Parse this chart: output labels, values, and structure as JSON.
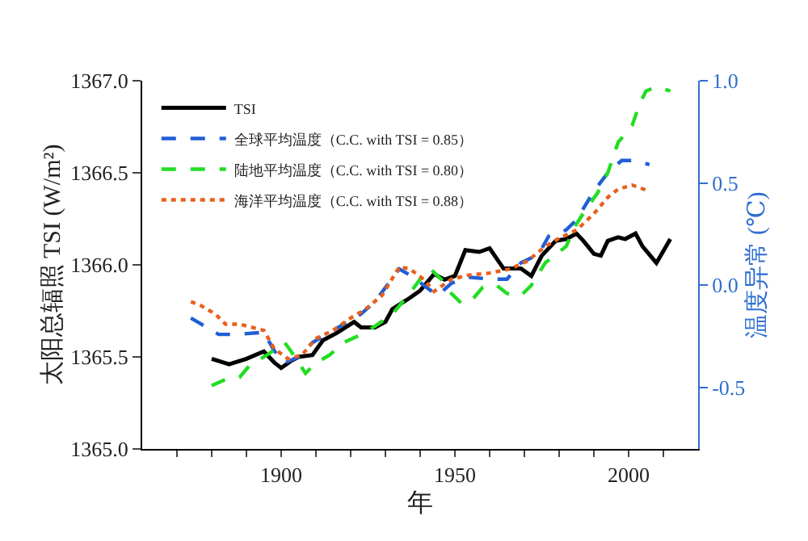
{
  "chart_data": {
    "type": "line",
    "xlabel": "年",
    "ylabel": "太阳总辐照 TSI (W/m²)",
    "y2label": "温度异常 (℃)",
    "xlim": [
      1860,
      2020
    ],
    "xticks": [
      {
        "value": 1870,
        "label": null
      },
      {
        "value": 1880,
        "label": null
      },
      {
        "value": 1890,
        "label": null
      },
      1900,
      {
        "value": 1910,
        "label": null
      },
      {
        "value": 1920,
        "label": null
      },
      {
        "value": 1930,
        "label": null
      },
      {
        "value": 1940,
        "label": null
      },
      1950,
      {
        "value": 1960,
        "label": null
      },
      {
        "value": 1970,
        "label": null
      },
      {
        "value": 1980,
        "label": null
      },
      {
        "value": 1990,
        "label": null
      },
      2000,
      {
        "value": 2010,
        "label": null
      }
    ],
    "ylim": [
      1365.0,
      1367.0
    ],
    "yticks": [
      {
        "value": 1365.0,
        "label": "1365.0"
      },
      {
        "value": 1365.5,
        "label": "1365.5"
      },
      {
        "value": 1366.0,
        "label": "1366.0"
      },
      {
        "value": 1366.5,
        "label": "1366.5"
      },
      {
        "value": 1367.0,
        "label": "1367.0"
      }
    ],
    "y2lim": [
      -0.8,
      1.0
    ],
    "y2ticks": [
      {
        "value": -0.5,
        "label": "-0.5"
      },
      {
        "value": 0.0,
        "label": "0.0"
      },
      {
        "value": 0.5,
        "label": "0.5"
      },
      {
        "value": 1.0,
        "label": "1.0"
      }
    ],
    "legend": "top left",
    "marker": "none",
    "series": [
      {
        "name": "TSI",
        "color": "#000000",
        "line_style": "solid",
        "x": [
          1880,
          1885,
          1890,
          1895,
          1898,
          1900,
          1903,
          1905,
          1909,
          1912,
          1916,
          1921,
          1923,
          1927,
          1930,
          1932,
          1937,
          1940,
          1944,
          1947,
          1950,
          1953,
          1957,
          1960,
          1964,
          1966,
          1969,
          1972,
          1975,
          1979,
          1982,
          1985,
          1987,
          1990,
          1992,
          1994,
          1997,
          1999,
          2002,
          2004,
          2008,
          2012
        ],
        "values": [
          1365.49,
          1365.46,
          1365.49,
          1365.53,
          1365.47,
          1365.44,
          1365.48,
          1365.5,
          1365.51,
          1365.59,
          1365.63,
          1365.69,
          1365.66,
          1365.66,
          1365.69,
          1365.76,
          1365.82,
          1365.86,
          1365.95,
          1365.92,
          1365.94,
          1366.08,
          1366.07,
          1366.09,
          1365.98,
          1365.98,
          1365.98,
          1365.94,
          1366.05,
          1366.13,
          1366.14,
          1366.17,
          1366.13,
          1366.06,
          1366.05,
          1366.13,
          1366.15,
          1366.14,
          1366.17,
          1366.1,
          1366.01,
          1366.14
        ]
      },
      {
        "name": "全球平均温度（C.C. with TSI = 0.85）",
        "color": "#1f5fd6",
        "line_style": "dashed",
        "axis": "y2",
        "x": [
          1874,
          1877,
          1882,
          1887,
          1895,
          1898,
          1901,
          1905,
          1909,
          1913,
          1918,
          1923,
          1927,
          1934,
          1938,
          1941,
          1945,
          1949,
          1954,
          1960,
          1965,
          1969,
          1974,
          1977,
          1982,
          1985,
          1990,
          1994,
          1998,
          2002,
          2006
        ],
        "values": [
          -0.16,
          -0.19,
          -0.24,
          -0.24,
          -0.23,
          -0.32,
          -0.38,
          -0.35,
          -0.28,
          -0.24,
          -0.19,
          -0.14,
          -0.08,
          0.08,
          0.04,
          0.0,
          -0.05,
          0.01,
          0.04,
          0.03,
          0.03,
          0.11,
          0.15,
          0.24,
          0.27,
          0.32,
          0.46,
          0.55,
          0.61,
          0.61,
          0.59
        ]
      },
      {
        "name": "陆地平均温度（C.C. with TSI = 0.80）",
        "color": "#22dd22",
        "line_style": "dashed",
        "axis": "y2",
        "x": [
          1880,
          1884,
          1888,
          1891,
          1896,
          1901,
          1904,
          1907,
          1910,
          1914,
          1918,
          1923,
          1927,
          1932,
          1937,
          1940,
          1943,
          1946,
          1949,
          1952,
          1955,
          1958,
          1962,
          1965,
          1969,
          1972,
          1976,
          1979,
          1982,
          1985,
          1988,
          1991,
          1994,
          1997,
          2001,
          2003,
          2005,
          2008,
          2012
        ],
        "values": [
          -0.49,
          -0.46,
          -0.45,
          -0.39,
          -0.34,
          -0.28,
          -0.35,
          -0.43,
          -0.38,
          -0.34,
          -0.28,
          -0.24,
          -0.2,
          -0.14,
          -0.04,
          0.03,
          0.08,
          0.03,
          -0.04,
          -0.09,
          -0.07,
          -0.01,
          0.0,
          -0.04,
          -0.05,
          0.0,
          0.11,
          0.15,
          0.19,
          0.3,
          0.38,
          0.45,
          0.55,
          0.7,
          0.78,
          0.88,
          0.95,
          0.97,
          0.95
        ]
      },
      {
        "name": "海洋平均温度（C.C. with TSI = 0.88）",
        "color": "#e8601c",
        "line_style": "dotted",
        "axis": "y2",
        "x": [
          1874,
          1877,
          1881,
          1884,
          1888,
          1895,
          1898,
          1902,
          1906,
          1910,
          1915,
          1920,
          1924,
          1929,
          1934,
          1937,
          1941,
          1944,
          1949,
          1954,
          1960,
          1966,
          1971,
          1976,
          1980,
          1985,
          1990,
          1994,
          1997,
          2001,
          2006
        ],
        "values": [
          -0.08,
          -0.1,
          -0.14,
          -0.19,
          -0.19,
          -0.22,
          -0.31,
          -0.36,
          -0.34,
          -0.26,
          -0.22,
          -0.16,
          -0.12,
          -0.05,
          0.09,
          0.08,
          0.03,
          -0.03,
          0.03,
          0.05,
          0.06,
          0.08,
          0.12,
          0.19,
          0.23,
          0.27,
          0.35,
          0.43,
          0.47,
          0.49,
          0.46
        ]
      }
    ]
  }
}
